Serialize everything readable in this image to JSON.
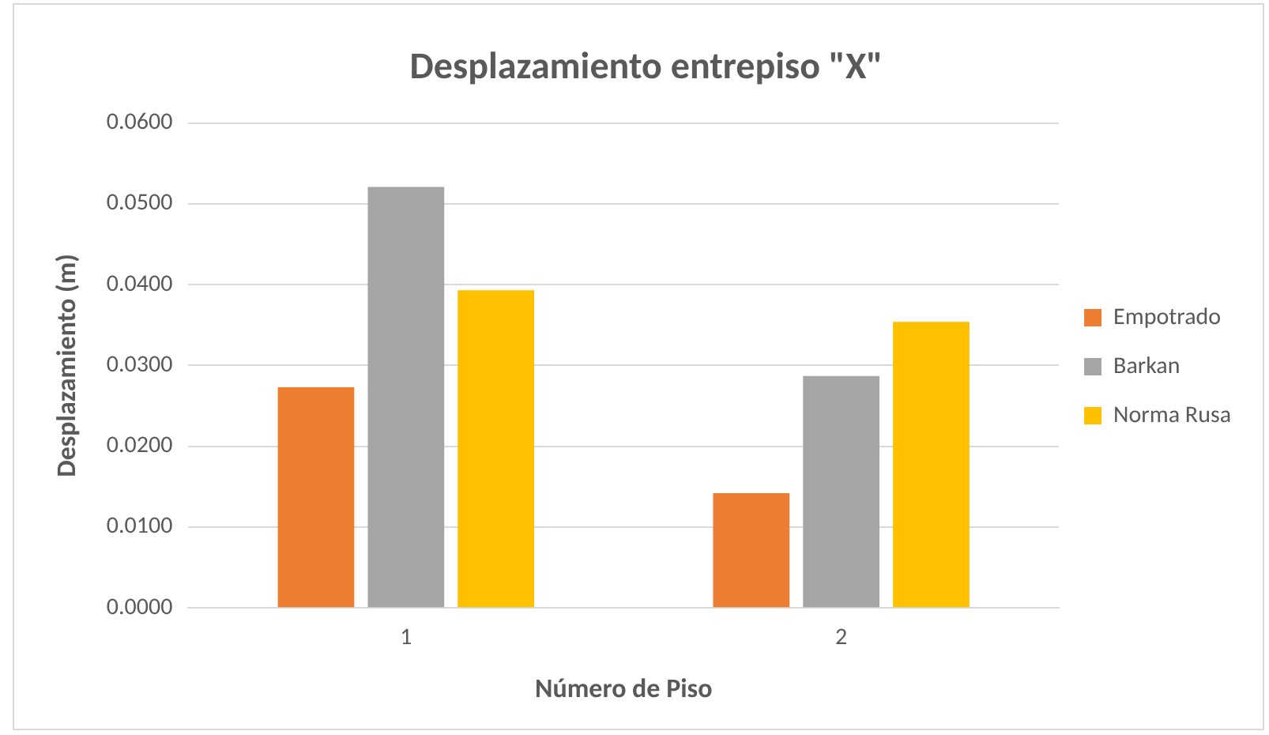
{
  "chart_data": {
    "type": "bar",
    "title": "Desplazamiento entrepiso \"X\"",
    "xlabel": "Número de Piso",
    "ylabel": "Desplazamiento (m)",
    "categories": [
      "1",
      "2"
    ],
    "series": [
      {
        "name": "Empotrado",
        "color": "#ed7d31",
        "values": [
          0.0273,
          0.0142
        ]
      },
      {
        "name": "Barkan",
        "color": "#a5a5a5",
        "values": [
          0.0521,
          0.0287
        ]
      },
      {
        "name": "Norma Rusa",
        "color": "#ffc000",
        "values": [
          0.0393,
          0.0354
        ]
      }
    ],
    "ylim": [
      0,
      0.06
    ],
    "yticks": [
      {
        "value": 0,
        "label": "0.0000"
      },
      {
        "value": 0.01,
        "label": "0.0100"
      },
      {
        "value": 0.02,
        "label": "0.0200"
      },
      {
        "value": 0.03,
        "label": "0.0300"
      },
      {
        "value": 0.04,
        "label": "0.0400"
      },
      {
        "value": 0.05,
        "label": "0.0500"
      },
      {
        "value": 0.06,
        "label": "0.0600"
      }
    ],
    "grid": "y",
    "legend": "right"
  }
}
